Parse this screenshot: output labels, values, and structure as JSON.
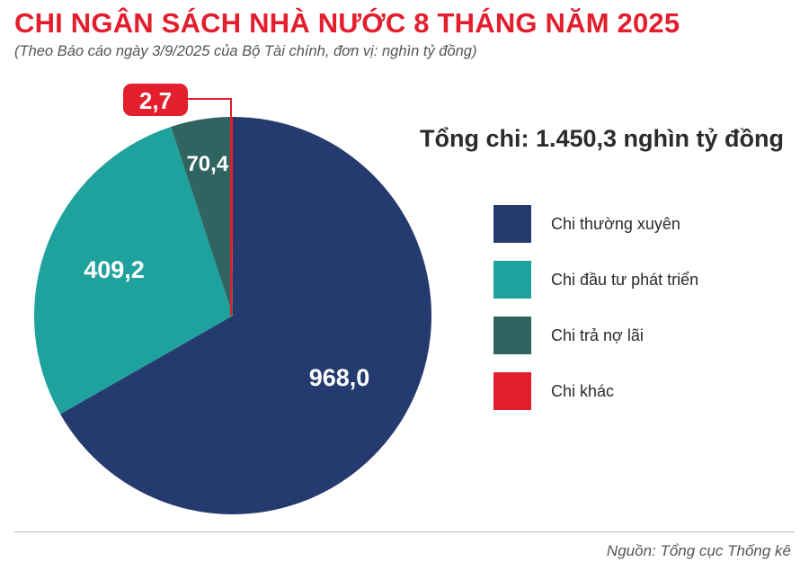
{
  "header": {
    "title": "CHI NGÂN SÁCH NHÀ NƯỚC 8 THÁNG NĂM 2025",
    "subtitle": "(Theo Báo cáo ngày 3/9/2025 của Bộ Tài chính, đơn vị: nghìn tỷ đồng)"
  },
  "total_text": "Tổng chi: 1.450,3 nghìn tỷ đồng",
  "source": "Nguồn: Tổng cục Thống kê",
  "chart_data": {
    "type": "pie",
    "title": "CHI NGÂN SÁCH NHÀ NƯỚC 8 THÁNG NĂM 2025",
    "unit": "nghìn tỷ đồng",
    "total": 1450.3,
    "slices": [
      {
        "name": "Chi thường xuyên",
        "value": 968.0,
        "label": "968,0",
        "color": "#253a6e"
      },
      {
        "name": "Chi đầu tư phát triển",
        "value": 409.2,
        "label": "409,2",
        "color": "#1fa29d"
      },
      {
        "name": "Chi trả nợ lãi",
        "value": 70.4,
        "label": "70,4",
        "color": "#2f6461"
      },
      {
        "name": "Chi khác",
        "value": 2.7,
        "label": "2,7",
        "color": "#e31e2d"
      }
    ],
    "legend_position": "right",
    "start_angle": "top, clockwise"
  }
}
